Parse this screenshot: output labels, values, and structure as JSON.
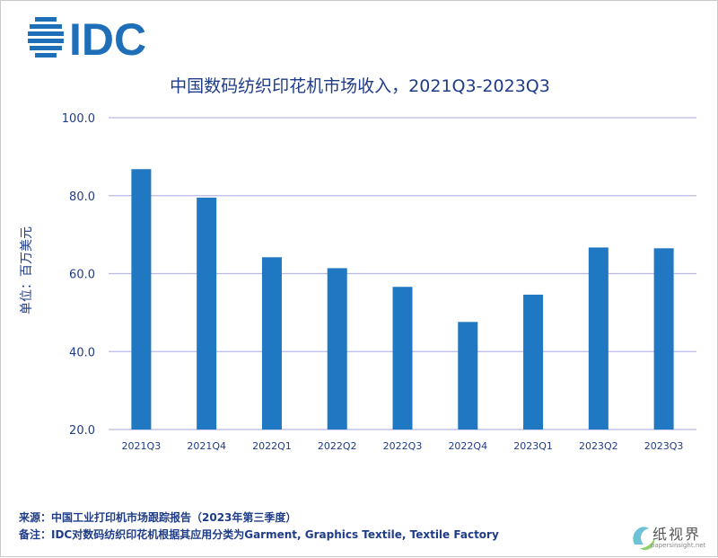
{
  "logo": {
    "text": "IDC",
    "color": "#1f6fb8"
  },
  "footer": {
    "source": "来源：中国工业打印机市场跟踪报告（2023年第三季度）",
    "note": "备注：IDC对数码纺织印花机根据其应用分类为Garment, Graphics Textile, Textile Factory"
  },
  "watermark": {
    "text": "纸视界",
    "url": "papersinsight.net"
  },
  "chart_data": {
    "type": "bar",
    "title": "中国数码纺织印花机市场收入，2021Q3-2023Q3",
    "xlabel": "",
    "ylabel": "单位：百万美元",
    "categories": [
      "2021Q3",
      "2021Q4",
      "2022Q1",
      "2022Q2",
      "2022Q3",
      "2022Q4",
      "2023Q1",
      "2023Q2",
      "2023Q3"
    ],
    "values": [
      86.8,
      79.5,
      64.2,
      61.4,
      56.6,
      47.6,
      54.6,
      66.7,
      66.5
    ],
    "ylim": [
      20,
      100
    ],
    "yticks": [
      "20.0",
      "40.0",
      "60.0",
      "80.0",
      "100.0"
    ],
    "grid": true,
    "bar_color": "#1f78c1",
    "grid_color": "#b9b9e8"
  }
}
